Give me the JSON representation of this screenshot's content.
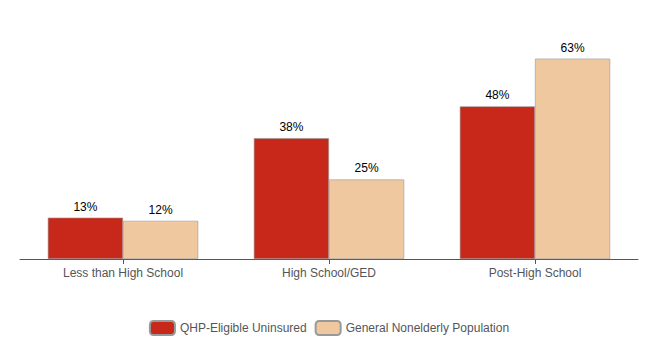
{
  "chart_data": {
    "type": "bar",
    "categories": [
      "Less than High School",
      "High School/GED",
      "Post-High School"
    ],
    "series": [
      {
        "name": "QHP-Eligible Uninsured",
        "color": "#C8281A",
        "values": [
          13,
          38,
          48
        ],
        "value_labels": [
          "13%",
          "38%",
          "48%"
        ]
      },
      {
        "name": "General Nonelderly Population",
        "color": "#F0C8A0",
        "values": [
          12,
          25,
          63
        ],
        "value_labels": [
          "12%",
          "25%",
          "63%"
        ]
      }
    ],
    "ylim": [
      0,
      72
    ],
    "grid": false,
    "legend": "bottom",
    "tick_labels": "x"
  }
}
